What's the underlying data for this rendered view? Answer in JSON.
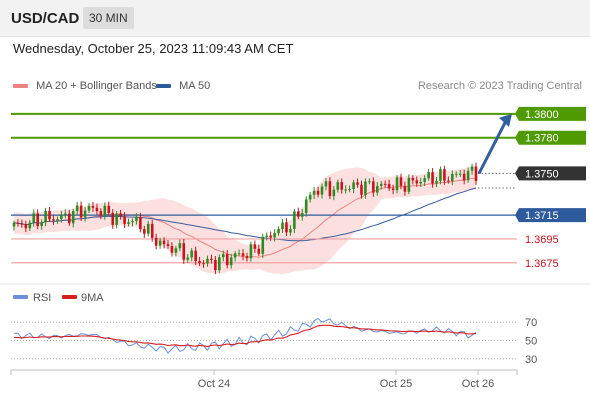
{
  "header": {
    "symbol": "USD/CAD",
    "timeframe": "30 MIN"
  },
  "datetime": "Wednesday, October 25, 2023 11:09:43 AM CET",
  "legend": {
    "items": [
      {
        "label": "MA 20 + Bollinger Bands",
        "color": "#f08080"
      },
      {
        "label": "MA 50",
        "color": "#2d5a9c"
      }
    ],
    "credit": "Research © 2023 Trading Central"
  },
  "colors": {
    "up": "#2e8b22",
    "down": "#c8141e",
    "target": "#4f9a00",
    "pivot": "#2d5a9c",
    "support": "#f2a0a0",
    "support_text": "#c8141e",
    "band_fill": "#fbdada",
    "ma20": "#f08080",
    "ma50": "#3a5c9c",
    "rsi": "#6b8fd8",
    "rsi_ma": "#d61e1e",
    "arrow": "#2f5f9e",
    "current_bg": "#333333"
  },
  "chart_data": [
    {
      "type": "candlestick",
      "title": "USD/CAD",
      "timeframe": "30 MIN",
      "x_ticks": [
        "Oct 24",
        "Oct 25",
        "Oct 26"
      ],
      "ylim": [
        1.3658,
        1.3815
      ],
      "current_price": 1.375,
      "levels": [
        {
          "value": 1.38,
          "label": "1.3800",
          "kind": "target"
        },
        {
          "value": 1.378,
          "label": "1.3780",
          "kind": "target"
        },
        {
          "value": 1.375,
          "label": "1.3750",
          "kind": "current"
        },
        {
          "value": 1.3715,
          "label": "1.3715",
          "kind": "pivot"
        },
        {
          "value": 1.3695,
          "label": "1.3695",
          "kind": "support"
        },
        {
          "value": 1.3675,
          "label": "1.3675",
          "kind": "support"
        }
      ],
      "forecast_arrow": {
        "from": 1.375,
        "to": 1.38,
        "direction": "up"
      },
      "key_closes": [
        1.3704,
        1.3713,
        1.3722,
        1.3709,
        1.3687,
        1.3677,
        1.3683,
        1.3702,
        1.3738,
        1.3741,
        1.3739,
        1.3745,
        1.3752
      ],
      "series": [
        {
          "name": "MA 20 + Bollinger Bands",
          "type": "line_with_bands"
        },
        {
          "name": "MA 50",
          "type": "line"
        }
      ]
    },
    {
      "type": "line",
      "title": "RSI",
      "ylim": [
        20,
        80
      ],
      "y_ticks": [
        70,
        50,
        30
      ],
      "series": [
        {
          "name": "RSI",
          "key_values": [
            56,
            54,
            57,
            46,
            40,
            44,
            49,
            58,
            73,
            62,
            58,
            62,
            55
          ]
        },
        {
          "name": "9MA",
          "key_values": [
            53,
            54,
            55,
            49,
            45,
            44,
            47,
            53,
            67,
            63,
            60,
            60,
            57
          ]
        }
      ]
    }
  ]
}
